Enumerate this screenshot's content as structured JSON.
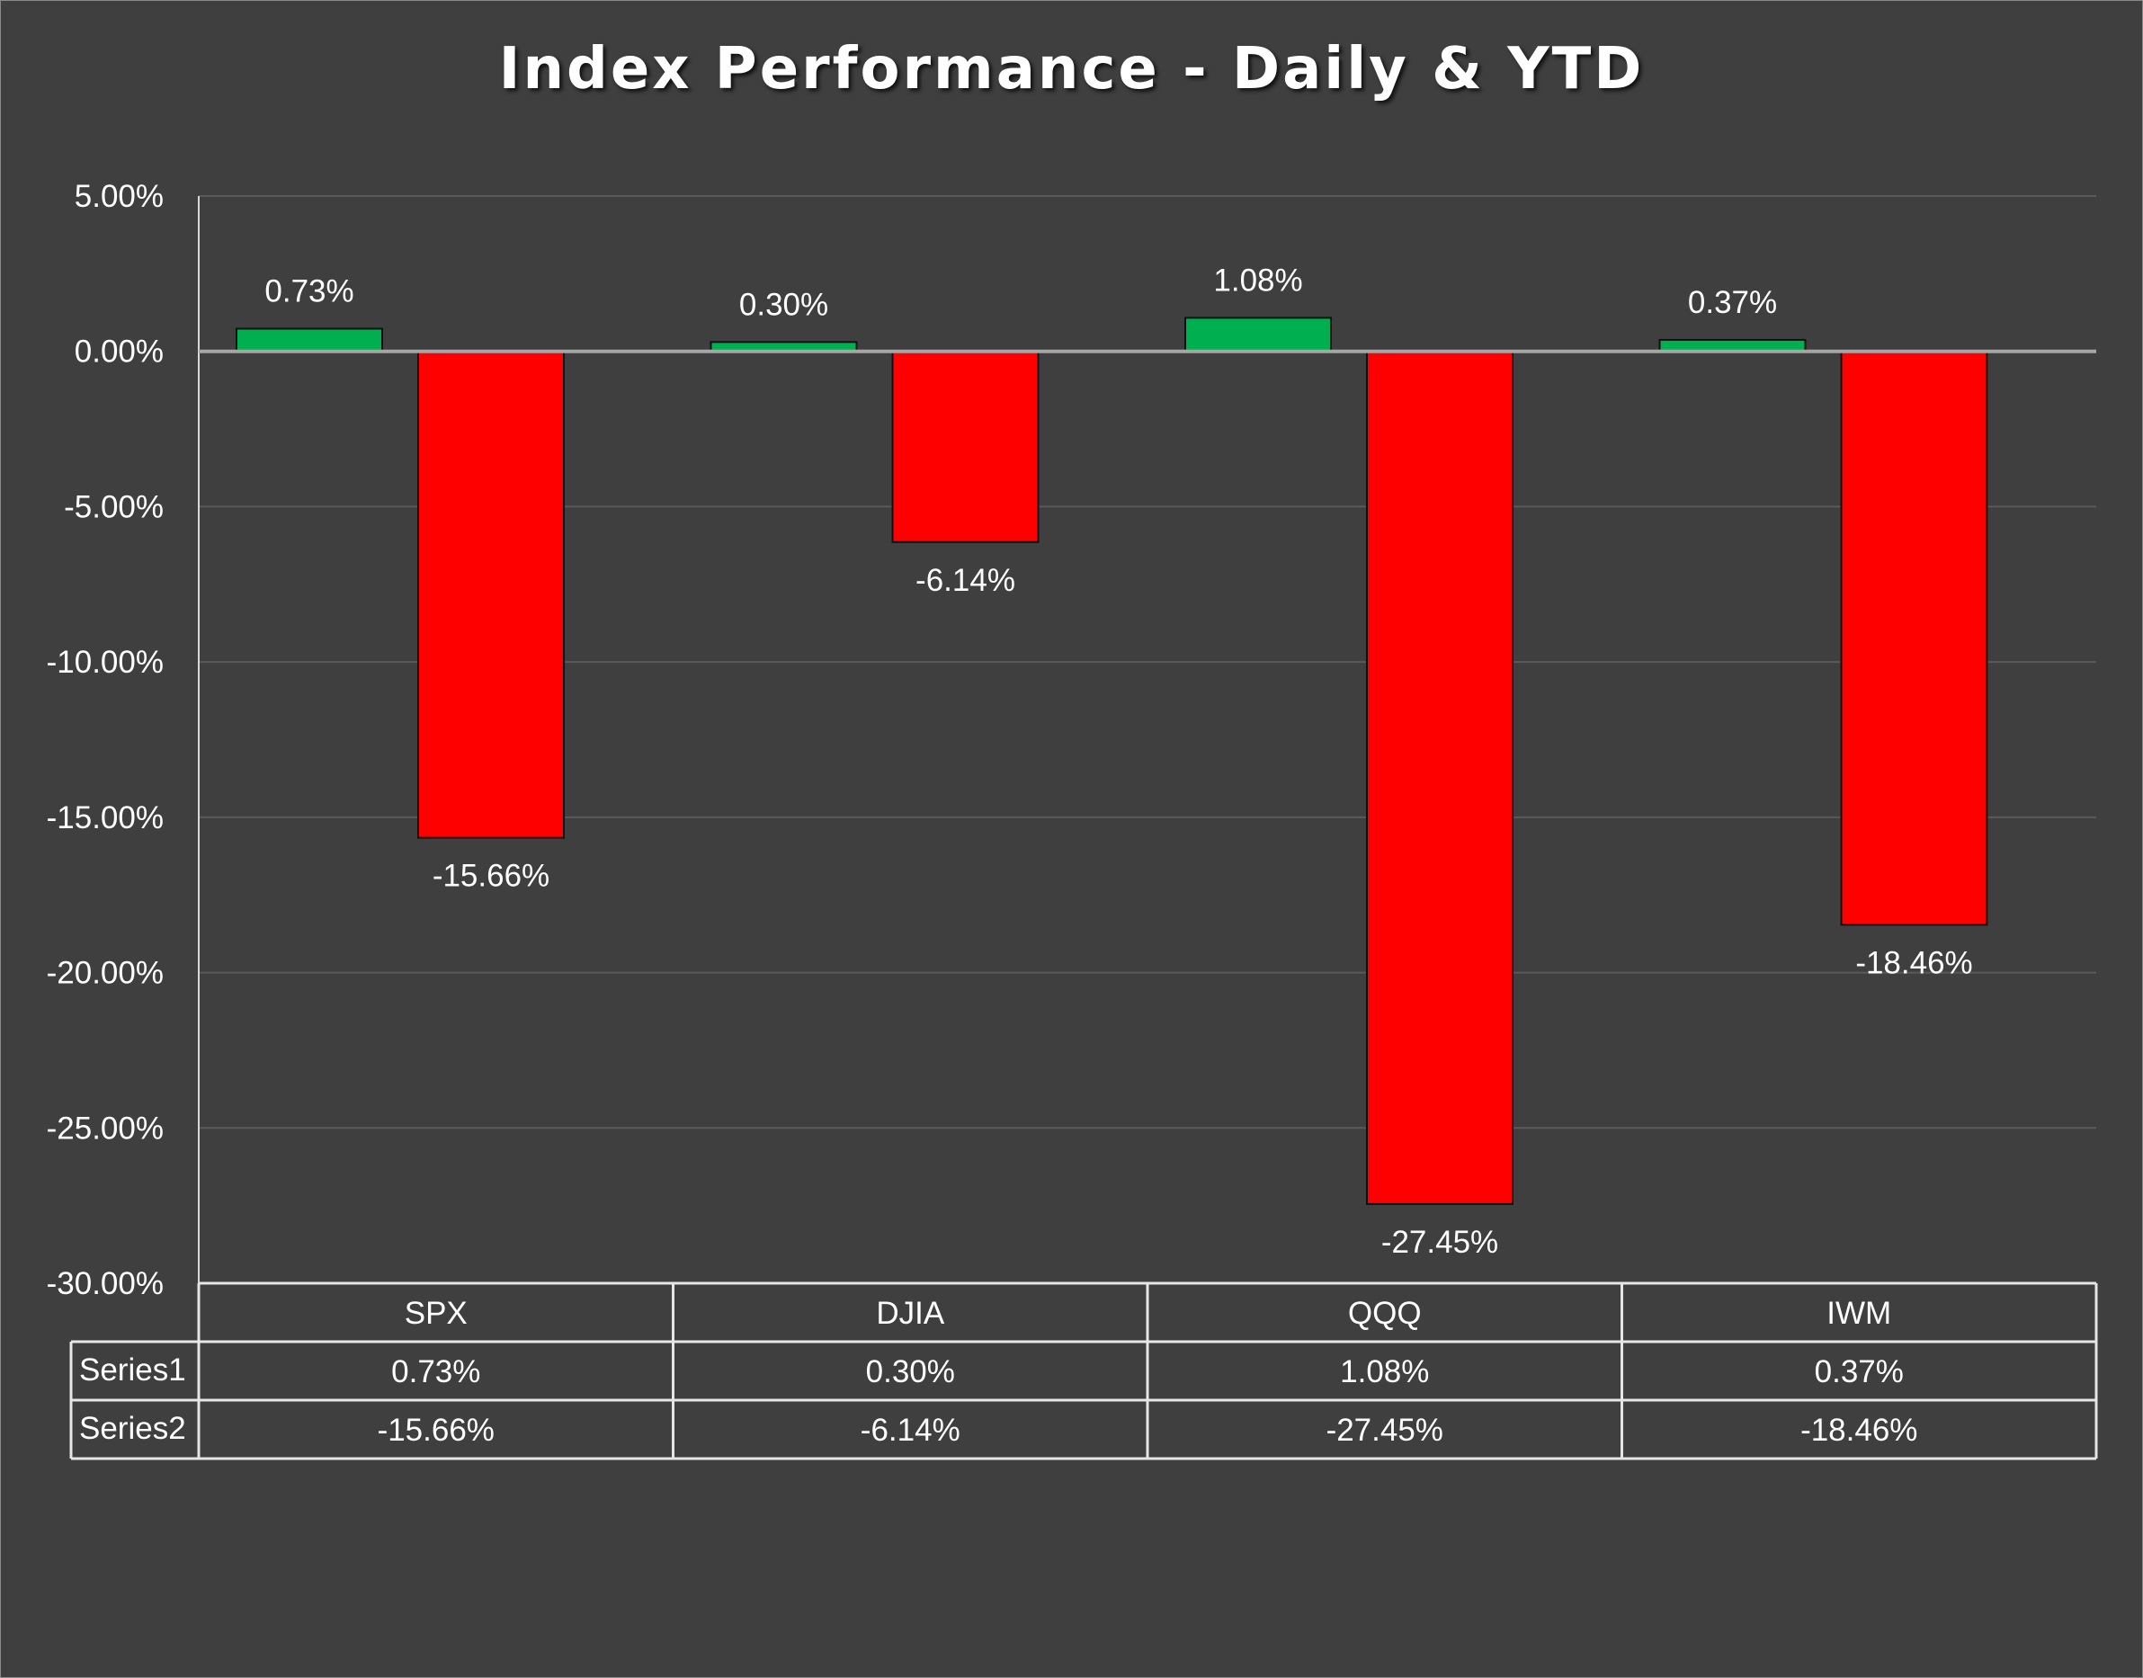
{
  "chart_data": {
    "type": "bar",
    "title": "Index Performance - Daily & YTD",
    "categories": [
      "SPX",
      "DJIA",
      "QQQ",
      "IWM"
    ],
    "series": [
      {
        "name": "Series1",
        "values": [
          0.73,
          0.3,
          1.08,
          0.37
        ],
        "labels": [
          "0.73%",
          "0.30%",
          "1.08%",
          "0.37%"
        ],
        "color": "#00b050"
      },
      {
        "name": "Series2",
        "values": [
          -15.66,
          -6.14,
          -27.45,
          -18.46
        ],
        "labels": [
          "-15.66%",
          "-6.14%",
          "-27.45%",
          "-18.46%"
        ],
        "color": "#ff0000"
      }
    ],
    "ylim": [
      -30,
      5
    ],
    "yticks": [
      5,
      0,
      -5,
      -10,
      -15,
      -20,
      -25,
      -30
    ],
    "ytick_labels": [
      "5.00%",
      "0.00%",
      "-5.00%",
      "-10.00%",
      "-15.00%",
      "-20.00%",
      "-25.00%",
      "-30.00%"
    ],
    "grid": true,
    "data_table": true,
    "xlabel": "",
    "ylabel": ""
  },
  "colors": {
    "background": "#3f3f3f",
    "gridline": "#5a5a5a",
    "zero_line": "#a6a6a6",
    "text": "#ffffff"
  }
}
